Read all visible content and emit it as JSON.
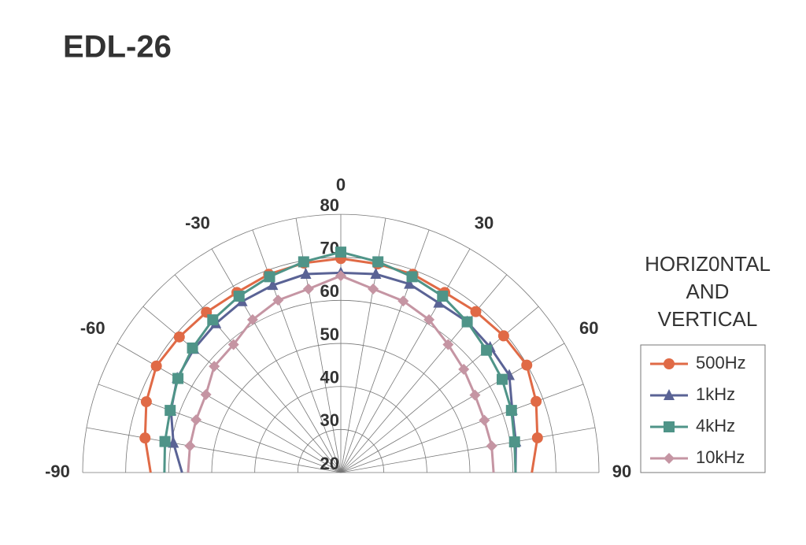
{
  "chart_data": {
    "type": "polar",
    "title": "EDL-26",
    "legend_title": [
      "HORIZ0NTAL",
      "AND",
      "VERTICAL"
    ],
    "theta": [
      -90,
      -80,
      -70,
      -60,
      -50,
      -40,
      -30,
      -20,
      -10,
      0,
      10,
      20,
      30,
      40,
      50,
      60,
      70,
      80,
      90
    ],
    "thetaticks": [
      -90,
      -60,
      -30,
      0,
      30,
      60,
      90
    ],
    "rlim": [
      20,
      80
    ],
    "rticks": [
      20,
      30,
      40,
      50,
      60,
      70,
      80
    ],
    "series": [
      {
        "name": "500Hz",
        "color": "#e06a46",
        "marker": "circle",
        "values": [
          64.2,
          66.2,
          68.1,
          69.5,
          69,
          68.6,
          68.3,
          69,
          69.4,
          69.7,
          69.2,
          69,
          68.3,
          68.8,
          69.4,
          69.9,
          68.3,
          66.4,
          64.4
        ]
      },
      {
        "name": "1kHz",
        "color": "#5a6395",
        "marker": "triangle",
        "values": [
          56.9,
          59.5,
          62,
          63.9,
          64.6,
          65.2,
          65.9,
          66.3,
          66.8,
          66.4,
          66.8,
          66.6,
          65.5,
          65.7,
          65.3,
          65.2,
          62.4,
          61.3,
          60.6
        ]
      },
      {
        "name": "4kHz",
        "color": "#4f9488",
        "marker": "square",
        "values": [
          61,
          61.5,
          62.2,
          63.7,
          65,
          66.3,
          67.3,
          68.4,
          69.7,
          71.2,
          69.7,
          68.4,
          67.3,
          65.7,
          64.2,
          63.3,
          62.2,
          61,
          60.6
        ]
      },
      {
        "name": "10kHz",
        "color": "#c595a3",
        "marker": "diamond",
        "values": [
          55.5,
          55.6,
          55.8,
          56.2,
          58.4,
          58.8,
          61,
          62.6,
          63.3,
          65.7,
          63.3,
          62.4,
          61,
          58.8,
          57.3,
          56,
          55.5,
          55.6,
          55.5
        ]
      }
    ]
  }
}
